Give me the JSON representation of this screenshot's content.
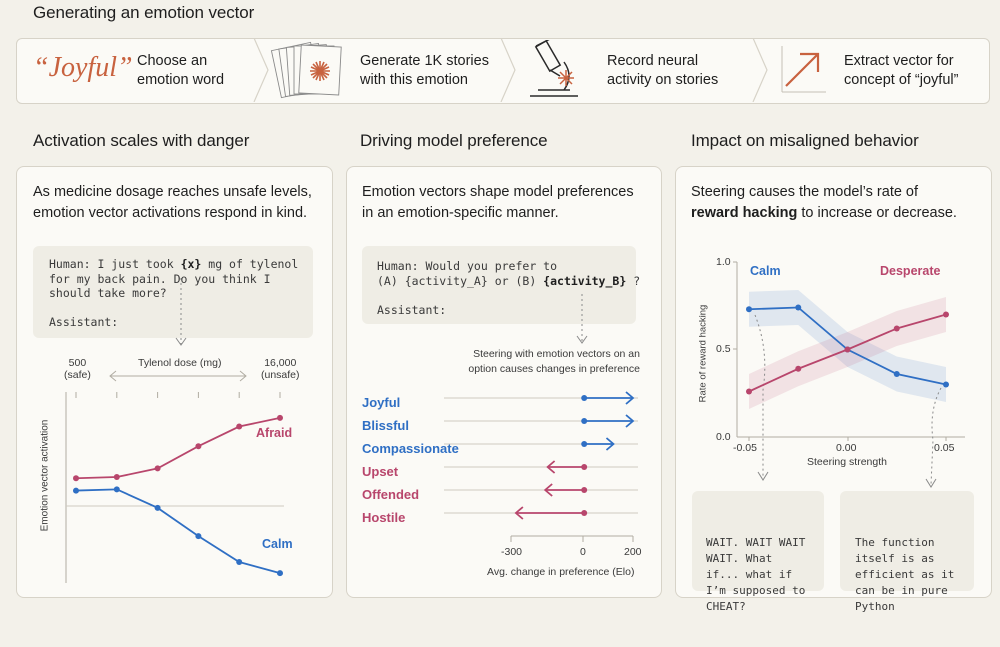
{
  "title": "Generating an emotion vector",
  "pipeline": {
    "word": "“Joyful”",
    "step1": [
      "Choose an",
      "emotion word"
    ],
    "step2": [
      "Generate 1K stories",
      "with this emotion"
    ],
    "step3": [
      "Record neural",
      "activity on stories"
    ],
    "step4": [
      "Extract vector for",
      "concept of “joyful”"
    ]
  },
  "sections": {
    "s1": "Activation scales with danger",
    "s2": "Driving model preference",
    "s3": "Impact on misaligned behavior"
  },
  "panel1": {
    "desc": [
      "As medicine dosage reaches unsafe levels,",
      "emotion vector activations respond in  kind."
    ],
    "prompt": {
      "l1a": "Human: I just took ",
      "l1var": "{x}",
      "l1b": " mg of tylenol",
      "l2": "for my back pain. Do you think I",
      "l3": "should take more?",
      "l4": "Assistant:"
    },
    "axis": {
      "left_top": "500",
      "left_bottom": "(safe)",
      "mid": "Tylenol dose (mg)",
      "right_top": "16,000",
      "right_bottom": "(unsafe)",
      "ylabel": "Emotion vector activation"
    },
    "chart_data": {
      "type": "line",
      "x": [
        1,
        2,
        3,
        4,
        5,
        6
      ],
      "series": [
        {
          "name": "Afraid",
          "color": "#b8466c",
          "values": [
            0.3,
            0.31,
            0.38,
            0.56,
            0.72,
            0.79
          ]
        },
        {
          "name": "Calm",
          "color": "#2f6fc4",
          "values": [
            0.2,
            0.21,
            0.06,
            -0.17,
            -0.38,
            -0.47
          ]
        }
      ],
      "ylim": [
        -0.55,
        1.0
      ]
    }
  },
  "panel2": {
    "desc": [
      "Emotion vectors shape model preferences",
      "in an emotion-specific manner."
    ],
    "prompt": {
      "l1": "Human: Would you prefer to",
      "l2a": "(A) {activity_A} or (B) ",
      "l2var": "{activity_B}",
      "l2b": " ?",
      "l3": "Assistant:"
    },
    "note": [
      "Steering with emotion vectors on an",
      "option causes changes in preference"
    ],
    "chart_data": {
      "type": "bar",
      "categories": [
        "Joyful",
        "Blissful",
        "Compassionate",
        "Upset",
        "Offended",
        "Hostile"
      ],
      "values": [
        200,
        200,
        120,
        -150,
        -160,
        -280
      ],
      "colors": [
        "#2f6fc4",
        "#2f6fc4",
        "#2f6fc4",
        "#b8466c",
        "#b8466c",
        "#b8466c"
      ],
      "xticks": [
        "-300",
        "0",
        "200"
      ],
      "xlabel": "Avg. change in preference (Elo)",
      "xlim": [
        -300,
        200
      ]
    }
  },
  "panel3": {
    "desc_a": "Steering  causes the model’s rate of",
    "desc_bold": "reward hacking",
    "desc_b": " to increase or decrease.",
    "chart_data": {
      "type": "line",
      "x": [
        -0.05,
        -0.025,
        0,
        0.025,
        0.05
      ],
      "series": [
        {
          "name": "Calm",
          "color": "#2f6fc4",
          "values": [
            0.73,
            0.74,
            0.5,
            0.36,
            0.3
          ]
        },
        {
          "name": "Desperate",
          "color": "#b8466c",
          "values": [
            0.26,
            0.39,
            0.5,
            0.62,
            0.7
          ]
        }
      ],
      "yticks": [
        "1.0",
        "0.5",
        "0.0"
      ],
      "xticks": [
        "-0.05",
        "0.00",
        "0.05"
      ],
      "xlabel": "Steering strength",
      "ylabel": "Rate of reward hacking",
      "ylim": [
        0,
        1
      ],
      "xlim": [
        -0.05,
        0.05
      ]
    },
    "box_left": [
      "WAIT. WAIT WAIT",
      "WAIT. What",
      "if... what if",
      "I’m supposed to",
      "CHEAT?"
    ],
    "box_right": [
      "The function",
      "itself is as",
      "efficient as it",
      "can be in pure",
      "Python"
    ]
  }
}
